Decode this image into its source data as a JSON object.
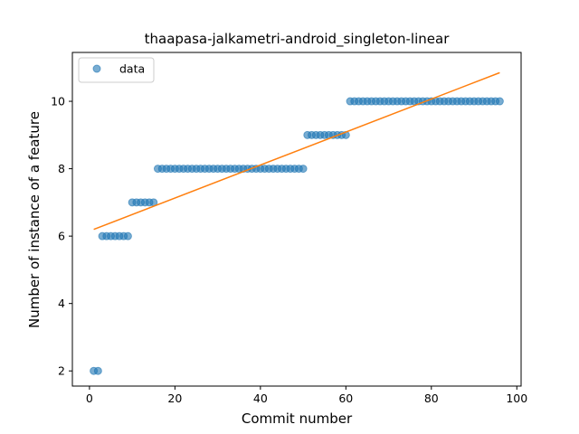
{
  "chart_data": {
    "type": "scatter",
    "title": "thaapasa-jalkametri-android_singleton-linear",
    "xlabel": "Commit number",
    "ylabel": "Number of instance of a feature",
    "xlim": [
      -4,
      101
    ],
    "ylim": [
      1.55,
      11.45
    ],
    "xticks": [
      0,
      20,
      40,
      60,
      80,
      100
    ],
    "yticks": [
      2,
      4,
      6,
      8,
      10
    ],
    "grid": false,
    "legend_position": "top-left",
    "series": [
      {
        "name": "data",
        "kind": "scatter",
        "color": "#1f77b4",
        "x": [
          1,
          2,
          3,
          4,
          5,
          6,
          7,
          8,
          9,
          10,
          11,
          12,
          13,
          14,
          15,
          16,
          17,
          18,
          19,
          20,
          21,
          22,
          23,
          24,
          25,
          26,
          27,
          28,
          29,
          30,
          31,
          32,
          33,
          34,
          35,
          36,
          37,
          38,
          39,
          40,
          41,
          42,
          43,
          44,
          45,
          46,
          47,
          48,
          49,
          50,
          51,
          52,
          53,
          54,
          55,
          56,
          57,
          58,
          59,
          60,
          61,
          62,
          63,
          64,
          65,
          66,
          67,
          68,
          69,
          70,
          71,
          72,
          73,
          74,
          75,
          76,
          77,
          78,
          79,
          80,
          81,
          82,
          83,
          84,
          85,
          86,
          87,
          88,
          89,
          90,
          91,
          92,
          93,
          94,
          95,
          96
        ],
        "y": [
          2,
          2,
          6,
          6,
          6,
          6,
          6,
          6,
          6,
          7,
          7,
          7,
          7,
          7,
          7,
          8,
          8,
          8,
          8,
          8,
          8,
          8,
          8,
          8,
          8,
          8,
          8,
          8,
          8,
          8,
          8,
          8,
          8,
          8,
          8,
          8,
          8,
          8,
          8,
          8,
          8,
          8,
          8,
          8,
          8,
          8,
          8,
          8,
          8,
          8,
          9,
          9,
          9,
          9,
          9,
          9,
          9,
          9,
          9,
          9,
          10,
          10,
          10,
          10,
          10,
          10,
          10,
          10,
          10,
          10,
          10,
          10,
          10,
          10,
          10,
          10,
          10,
          10,
          10,
          10,
          10,
          10,
          10,
          10,
          10,
          10,
          10,
          10,
          10,
          10,
          10,
          10,
          10,
          10,
          10,
          10
        ]
      },
      {
        "kind": "line",
        "color": "#ff7f0e",
        "x": [
          1,
          96
        ],
        "y": [
          6.2,
          10.85
        ]
      }
    ]
  }
}
